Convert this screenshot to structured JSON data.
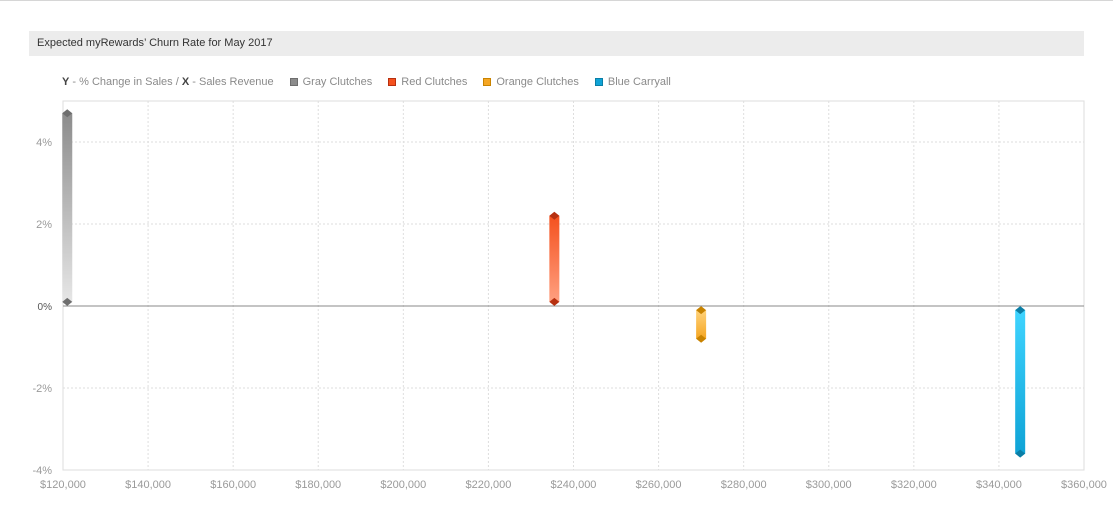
{
  "title": "Expected myRewards’ Churn Rate for May 2017",
  "legend": {
    "axis_note_y_key": "Y",
    "axis_note_y_text": " - % Change in Sales / ",
    "axis_note_x_key": "X",
    "axis_note_x_text": " - Sales Revenue"
  },
  "colors": {
    "grid": "#dedede",
    "zero_line": "#888888",
    "title_bg": "#ececec"
  },
  "chart_data": {
    "type": "range-bar",
    "xlim": [
      120000,
      360000
    ],
    "ylim": [
      -4,
      5
    ],
    "x_ticks": [
      {
        "value": 120000,
        "label": "$120,000"
      },
      {
        "value": 140000,
        "label": "$140,000"
      },
      {
        "value": 160000,
        "label": "$160,000"
      },
      {
        "value": 180000,
        "label": "$180,000"
      },
      {
        "value": 200000,
        "label": "$200,000"
      },
      {
        "value": 220000,
        "label": "$220,000"
      },
      {
        "value": 240000,
        "label": "$240,000"
      },
      {
        "value": 260000,
        "label": "$260,000"
      },
      {
        "value": 280000,
        "label": "$280,000"
      },
      {
        "value": 300000,
        "label": "$300,000"
      },
      {
        "value": 320000,
        "label": "$320,000"
      },
      {
        "value": 340000,
        "label": "$340,000"
      },
      {
        "value": 360000,
        "label": "$360,000"
      }
    ],
    "y_ticks": [
      {
        "value": 4,
        "label": "4%"
      },
      {
        "value": 2,
        "label": "2%"
      },
      {
        "value": 0,
        "label": "0%"
      },
      {
        "value": -2,
        "label": "-2%"
      },
      {
        "value": -4,
        "label": "-4%"
      }
    ],
    "grid": true,
    "legend_position": "top-left",
    "series": [
      {
        "name": "Gray Clutches",
        "x": 121000,
        "low": 0.1,
        "high": 4.7,
        "color": "#8c8c8c",
        "light": "#e6e6e6",
        "dark": "#6e6e6e"
      },
      {
        "name": "Red Clutches",
        "x": 235500,
        "low": 0.1,
        "high": 2.2,
        "color": "#f4511e",
        "light": "#ffa080",
        "dark": "#b73010"
      },
      {
        "name": "Orange Clutches",
        "x": 270000,
        "low": -0.8,
        "high": -0.1,
        "color": "#f5a623",
        "light": "#ffd27a",
        "dark": "#c98300"
      },
      {
        "name": "Blue Carryall",
        "x": 345000,
        "low": -3.6,
        "high": -0.1,
        "color": "#0fa3d6",
        "light": "#3fd4ff",
        "dark": "#0a7ea6"
      }
    ]
  }
}
